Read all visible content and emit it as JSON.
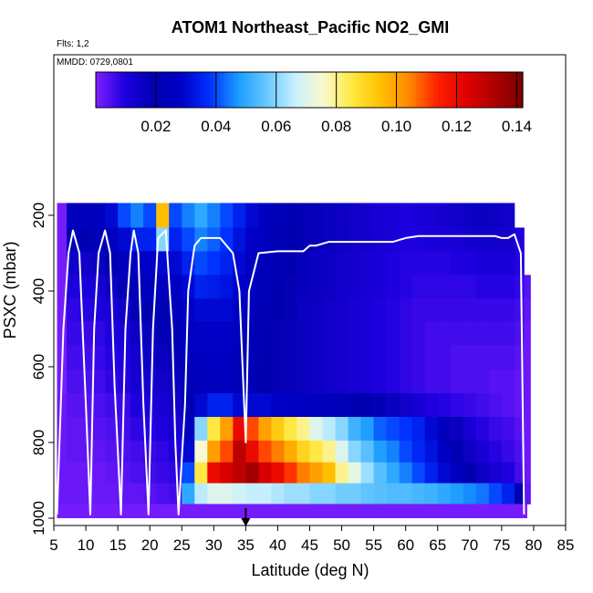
{
  "chart_data": {
    "type": "heatmap",
    "title": "ATOM1 Northeast_Pacific NO2_GMI",
    "flights_label": "Flts: 1,2",
    "date_label": "MMDD: 0729,0801",
    "xlabel": "Latitude (deg N)",
    "ylabel": "PSXC (mbar)",
    "xlim": [
      5,
      85
    ],
    "ylim": [
      1000,
      60
    ],
    "y_reversed": true,
    "x_ticks": [
      "5",
      "10",
      "15",
      "20",
      "25",
      "30",
      "35",
      "40",
      "45",
      "50",
      "55",
      "60",
      "65",
      "70",
      "75",
      "80",
      "85"
    ],
    "y_ticks": [
      "200",
      "400",
      "600",
      "800",
      "1000"
    ],
    "colorbar": {
      "range": [
        0,
        0.142
      ],
      "ticks": [
        "0.02",
        "0.04",
        "0.06",
        "0.08",
        "0.10",
        "0.12",
        "0.14"
      ],
      "colors": [
        "#7f1fff",
        "#1f00e0",
        "#0000b0",
        "#0000c8",
        "#0030ff",
        "#1a9cff",
        "#66c8ff",
        "#c8f0ff",
        "#fafacd",
        "#ffe840",
        "#ffc000",
        "#ff8800",
        "#ff2000",
        "#e00000",
        "#b00000",
        "#7a0000"
      ]
    },
    "pressure_levels": [
      200,
      265,
      325,
      390,
      450,
      510,
      575,
      640,
      700,
      765,
      825,
      880,
      935
    ],
    "series": [
      {
        "lat": [
          5.5,
          7
        ],
        "values": [
          0.001,
          0.001,
          0.001,
          0.001,
          0.001,
          0.001,
          0.001,
          0.001,
          0.002,
          0.002,
          0.002,
          0.002,
          0.002
        ]
      },
      {
        "lat": [
          7,
          9
        ],
        "values": [
          0.024,
          0.02,
          0.014,
          0.01,
          0.008,
          0.007,
          0.006,
          0.005,
          0.004,
          0.003,
          0.003,
          0.002,
          0.002
        ]
      },
      {
        "lat": [
          9,
          11
        ],
        "values": [
          0.024,
          0.02,
          0.014,
          0.011,
          0.009,
          0.007,
          0.006,
          0.005,
          0.004,
          0.003,
          0.003,
          0.002,
          0.002
        ]
      },
      {
        "lat": [
          11,
          13
        ],
        "values": [
          0.025,
          0.022,
          0.016,
          0.012,
          0.01,
          0.008,
          0.007,
          0.006,
          0.005,
          0.004,
          0.003,
          0.002,
          0.002
        ]
      },
      {
        "lat": [
          13,
          15
        ],
        "values": [
          0.03,
          0.025,
          0.02,
          0.015,
          0.012,
          0.01,
          0.009,
          0.008,
          0.006,
          0.005,
          0.004,
          0.003,
          0.002
        ]
      },
      {
        "lat": [
          15,
          17
        ],
        "values": [
          0.04,
          0.03,
          0.024,
          0.018,
          0.014,
          0.012,
          0.01,
          0.009,
          0.007,
          0.006,
          0.005,
          0.004,
          0.003
        ]
      },
      {
        "lat": [
          17,
          19
        ],
        "values": [
          0.045,
          0.035,
          0.026,
          0.022,
          0.018,
          0.015,
          0.013,
          0.012,
          0.01,
          0.008,
          0.006,
          0.005,
          0.003
        ]
      },
      {
        "lat": [
          19,
          21
        ],
        "values": [
          0.04,
          0.035,
          0.028,
          0.024,
          0.02,
          0.017,
          0.015,
          0.013,
          0.011,
          0.009,
          0.007,
          0.006,
          0.004
        ]
      },
      {
        "lat": [
          21,
          23
        ],
        "values": [
          0.095,
          0.06,
          0.03,
          0.025,
          0.021,
          0.018,
          0.016,
          0.014,
          0.012,
          0.01,
          0.008,
          0.007,
          0.005
        ]
      },
      {
        "lat": [
          23,
          25
        ],
        "values": [
          0.04,
          0.035,
          0.03,
          0.026,
          0.023,
          0.02,
          0.018,
          0.016,
          0.014,
          0.012,
          0.01,
          0.008,
          0.006
        ]
      },
      {
        "lat": [
          25,
          27
        ],
        "values": [
          0.045,
          0.04,
          0.035,
          0.03,
          0.028,
          0.026,
          0.024,
          0.022,
          0.02,
          0.025,
          0.03,
          0.04,
          0.05
        ]
      },
      {
        "lat": [
          27,
          29
        ],
        "values": [
          0.05,
          0.045,
          0.04,
          0.035,
          0.03,
          0.028,
          0.026,
          0.024,
          0.03,
          0.06,
          0.075,
          0.085,
          0.065
        ]
      },
      {
        "lat": [
          29,
          31
        ],
        "values": [
          0.045,
          0.042,
          0.038,
          0.034,
          0.03,
          0.028,
          0.026,
          0.025,
          0.035,
          0.085,
          0.1,
          0.12,
          0.07
        ]
      },
      {
        "lat": [
          31,
          33
        ],
        "values": [
          0.04,
          0.038,
          0.035,
          0.032,
          0.03,
          0.028,
          0.026,
          0.025,
          0.035,
          0.1,
          0.11,
          0.125,
          0.07
        ]
      },
      {
        "lat": [
          33,
          35
        ],
        "values": [
          0.035,
          0.032,
          0.03,
          0.028,
          0.026,
          0.024,
          0.022,
          0.022,
          0.03,
          0.12,
          0.13,
          0.13,
          0.068
        ]
      },
      {
        "lat": [
          35,
          37
        ],
        "values": [
          0.03,
          0.028,
          0.026,
          0.025,
          0.024,
          0.022,
          0.021,
          0.02,
          0.03,
          0.11,
          0.12,
          0.135,
          0.066
        ]
      },
      {
        "lat": [
          37,
          39
        ],
        "values": [
          0.025,
          0.024,
          0.023,
          0.022,
          0.021,
          0.02,
          0.019,
          0.019,
          0.03,
          0.1,
          0.11,
          0.125,
          0.066
        ]
      },
      {
        "lat": [
          39,
          41
        ],
        "values": [
          0.022,
          0.021,
          0.021,
          0.02,
          0.019,
          0.018,
          0.018,
          0.018,
          0.028,
          0.092,
          0.105,
          0.12,
          0.064
        ]
      },
      {
        "lat": [
          41,
          43
        ],
        "values": [
          0.02,
          0.019,
          0.019,
          0.018,
          0.018,
          0.017,
          0.017,
          0.017,
          0.026,
          0.085,
          0.098,
          0.112,
          0.062
        ]
      },
      {
        "lat": [
          43,
          45
        ],
        "values": [
          0.018,
          0.018,
          0.017,
          0.017,
          0.016,
          0.016,
          0.016,
          0.016,
          0.026,
          0.08,
          0.09,
          0.105,
          0.062
        ]
      },
      {
        "lat": [
          45,
          47
        ],
        "values": [
          0.017,
          0.017,
          0.016,
          0.016,
          0.015,
          0.015,
          0.015,
          0.015,
          0.025,
          0.07,
          0.085,
          0.1,
          0.06
        ]
      },
      {
        "lat": [
          47,
          49
        ],
        "values": [
          0.016,
          0.016,
          0.015,
          0.015,
          0.014,
          0.014,
          0.014,
          0.014,
          0.024,
          0.065,
          0.08,
          0.095,
          0.06
        ]
      },
      {
        "lat": [
          49,
          51
        ],
        "values": [
          0.015,
          0.015,
          0.014,
          0.014,
          0.013,
          0.013,
          0.013,
          0.013,
          0.022,
          0.06,
          0.07,
          0.08,
          0.058
        ]
      },
      {
        "lat": [
          51,
          53
        ],
        "values": [
          0.014,
          0.014,
          0.013,
          0.013,
          0.012,
          0.012,
          0.012,
          0.012,
          0.02,
          0.052,
          0.06,
          0.072,
          0.058
        ]
      },
      {
        "lat": [
          53,
          55
        ],
        "values": [
          0.013,
          0.013,
          0.012,
          0.012,
          0.011,
          0.011,
          0.011,
          0.011,
          0.019,
          0.048,
          0.055,
          0.062,
          0.056
        ]
      },
      {
        "lat": [
          55,
          57
        ],
        "values": [
          0.012,
          0.012,
          0.011,
          0.011,
          0.01,
          0.01,
          0.01,
          0.01,
          0.018,
          0.042,
          0.048,
          0.055,
          0.055
        ]
      },
      {
        "lat": [
          57,
          59
        ],
        "values": [
          0.011,
          0.011,
          0.01,
          0.01,
          0.009,
          0.009,
          0.009,
          0.009,
          0.016,
          0.04,
          0.045,
          0.05,
          0.054
        ]
      },
      {
        "lat": [
          59,
          61
        ],
        "values": [
          0.01,
          0.01,
          0.009,
          0.009,
          0.008,
          0.008,
          0.008,
          0.008,
          0.014,
          0.038,
          0.04,
          0.045,
          0.054
        ]
      },
      {
        "lat": [
          61,
          63
        ],
        "values": [
          0.011,
          0.01,
          0.009,
          0.008,
          0.007,
          0.007,
          0.007,
          0.007,
          0.012,
          0.035,
          0.036,
          0.04,
          0.053
        ]
      },
      {
        "lat": [
          63,
          65
        ],
        "values": [
          0.012,
          0.011,
          0.009,
          0.008,
          0.007,
          0.006,
          0.006,
          0.006,
          0.01,
          0.03,
          0.032,
          0.035,
          0.052
        ]
      },
      {
        "lat": [
          65,
          67
        ],
        "values": [
          0.013,
          0.011,
          0.009,
          0.008,
          0.007,
          0.006,
          0.006,
          0.006,
          0.009,
          0.024,
          0.026,
          0.03,
          0.05
        ]
      },
      {
        "lat": [
          67,
          69
        ],
        "values": [
          0.014,
          0.012,
          0.01,
          0.008,
          0.007,
          0.006,
          0.005,
          0.005,
          0.008,
          0.016,
          0.02,
          0.025,
          0.048
        ]
      },
      {
        "lat": [
          69,
          71
        ],
        "values": [
          0.015,
          0.013,
          0.01,
          0.008,
          0.007,
          0.006,
          0.005,
          0.005,
          0.007,
          0.012,
          0.015,
          0.02,
          0.046
        ]
      },
      {
        "lat": [
          71,
          73
        ],
        "values": [
          0.016,
          0.014,
          0.011,
          0.009,
          0.007,
          0.006,
          0.005,
          0.005,
          0.006,
          0.009,
          0.012,
          0.015,
          0.044
        ]
      },
      {
        "lat": [
          73,
          75
        ],
        "values": [
          0.015,
          0.014,
          0.011,
          0.009,
          0.007,
          0.006,
          0.005,
          0.004,
          0.005,
          0.007,
          0.009,
          0.012,
          0.04
        ]
      },
      {
        "lat": [
          75,
          77
        ],
        "values": [
          0.014,
          0.013,
          0.011,
          0.009,
          0.007,
          0.006,
          0.005,
          0.004,
          0.004,
          0.006,
          0.007,
          0.01,
          0.035
        ]
      },
      {
        "lat": [
          77,
          78.5
        ],
        "values": [
          null,
          0.01,
          0.009,
          0.008,
          0.006,
          0.005,
          0.004,
          0.003,
          0.003,
          0.004,
          0.005,
          0.006,
          0.02
        ]
      },
      {
        "lat": [
          78.5,
          79.5
        ],
        "values": [
          null,
          null,
          null,
          0.004,
          0.003,
          0.002,
          0.002,
          0.002,
          0.002,
          0.002,
          0.002,
          0.002,
          0.003
        ]
      }
    ],
    "surface_row": {
      "pressure": 985,
      "lat_range": [
        5.5,
        79
      ],
      "value": 0.001
    },
    "flight_track": {
      "lat": [
        5.5,
        6.5,
        7.3,
        8,
        9,
        10,
        10.7,
        11.3,
        12,
        13,
        13.8,
        14.5,
        15.5,
        16.2,
        17,
        17.5,
        18.2,
        19,
        19.8,
        20.5,
        21.3,
        22.5,
        23.5,
        24,
        24.5,
        25.5,
        26,
        27,
        28,
        29,
        30,
        31,
        33,
        34,
        34.5,
        35,
        35.5,
        37,
        40,
        42,
        44,
        45,
        46,
        48,
        52,
        55,
        58,
        60,
        62,
        64,
        66,
        68,
        70,
        72,
        74,
        75,
        76,
        77,
        78,
        78.5
      ],
      "pressure": [
        990,
        500,
        300,
        240,
        300,
        700,
        990,
        500,
        300,
        240,
        300,
        650,
        990,
        500,
        300,
        240,
        300,
        700,
        990,
        500,
        260,
        240,
        500,
        800,
        990,
        700,
        400,
        280,
        260,
        260,
        260,
        260,
        300,
        400,
        600,
        800,
        400,
        300,
        295,
        295,
        295,
        280,
        280,
        270,
        270,
        270,
        270,
        260,
        255,
        255,
        255,
        255,
        255,
        255,
        255,
        260,
        260,
        250,
        300,
        990
      ]
    },
    "marker_lat": 35
  }
}
